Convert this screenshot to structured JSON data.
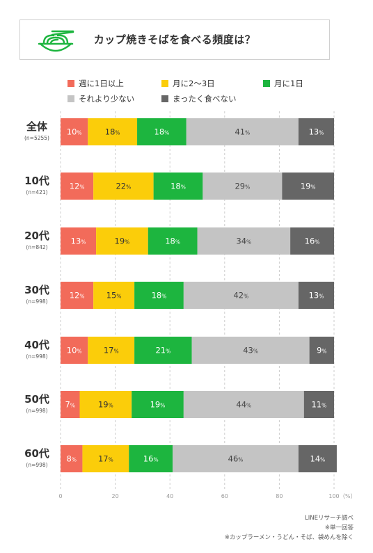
{
  "title": "カップ焼きそばを食べる頻度は？",
  "chart_data": {
    "type": "bar",
    "orientation": "horizontal",
    "stacked": true,
    "unit": "%",
    "categories": [
      {
        "label": "全体",
        "n": "(n=5255)"
      },
      {
        "label": "10代",
        "n": "(n=421)"
      },
      {
        "label": "20代",
        "n": "(n=842)"
      },
      {
        "label": "30代",
        "n": "(n=998)"
      },
      {
        "label": "40代",
        "n": "(n=998)"
      },
      {
        "label": "50代",
        "n": "(n=998)"
      },
      {
        "label": "60代",
        "n": "(n=998)"
      }
    ],
    "series": [
      {
        "name": "週に1日以上",
        "color": "#f26b5a",
        "text_color": "#ffffff",
        "values": [
          10,
          12,
          13,
          12,
          10,
          7,
          8
        ]
      },
      {
        "name": "月に2〜3日",
        "color": "#fbcd0a",
        "text_color": "#333333",
        "values": [
          18,
          22,
          19,
          15,
          17,
          19,
          17
        ]
      },
      {
        "name": "月に1日",
        "color": "#1db53f",
        "text_color": "#ffffff",
        "values": [
          18,
          18,
          18,
          18,
          21,
          19,
          16
        ]
      },
      {
        "name": "それより少ない",
        "color": "#c4c4c4",
        "text_color": "#444444",
        "values": [
          41,
          29,
          34,
          42,
          43,
          44,
          46
        ]
      },
      {
        "name": "まったく食べない",
        "color": "#666666",
        "text_color": "#ffffff",
        "values": [
          13,
          19,
          16,
          13,
          9,
          11,
          14
        ]
      }
    ],
    "xlim": [
      0,
      100
    ],
    "x_ticks": [
      0,
      20,
      40,
      60,
      80,
      100
    ],
    "x_unit_label": "（%）",
    "legend_position": "top",
    "grid": true
  },
  "footnotes": [
    "LINEリサーチ調べ",
    "※単一回答",
    "※カップラーメン・うどん・そば、袋めんを除く"
  ]
}
